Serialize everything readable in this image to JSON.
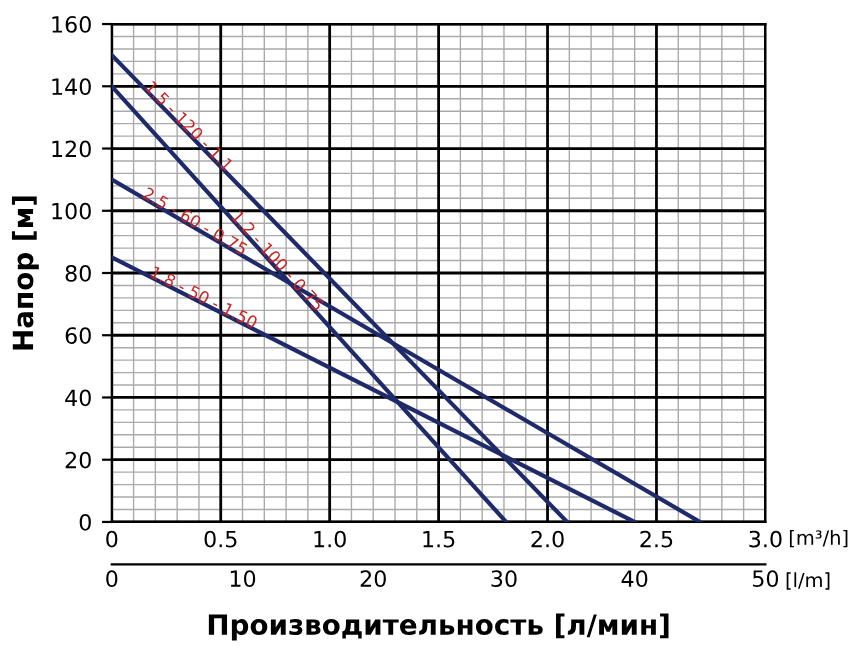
{
  "chart_data": {
    "type": "line",
    "xlabel": "Производительность [л/мин]",
    "ylabel": "Напор [м]",
    "series": [
      {
        "name": "1.5 - 120 - 1.1",
        "color": "#1f2a6b",
        "x": [
          0,
          2.09
        ],
        "values": [
          150,
          0
        ]
      },
      {
        "name": "1.2 - 100 - 0.75",
        "color": "#1f2a6b",
        "x": [
          0,
          1.81
        ],
        "values": [
          140,
          0
        ]
      },
      {
        "name": "2.5 - 60 - 0.75",
        "color": "#1f2a6b",
        "x": [
          0,
          2.7
        ],
        "values": [
          110,
          0
        ]
      },
      {
        "name": "1.8 - 50 - 1.50",
        "color": "#1f2a6b",
        "x": [
          0,
          2.4
        ],
        "values": [
          85,
          0
        ]
      }
    ],
    "xlim": [
      0,
      3.0
    ],
    "xticks": [
      0,
      0.5,
      {
        "value": 1.0,
        "label": "1.0"
      },
      1.5,
      {
        "value": 2.0,
        "label": "2.0"
      },
      2.5,
      {
        "value": 3.0,
        "label": "3.0"
      }
    ],
    "x2lim": [
      0,
      50
    ],
    "x2ticks": [
      0,
      10,
      20,
      30,
      40,
      50
    ],
    "ylim": [
      0,
      160
    ],
    "yticks": [
      0,
      20,
      40,
      60,
      80,
      100,
      120,
      140,
      160
    ],
    "grid": true,
    "legend": false,
    "marker": "none",
    "line_style": "solid",
    "annotations": [
      "[m³/h]",
      "[l/m]"
    ]
  }
}
